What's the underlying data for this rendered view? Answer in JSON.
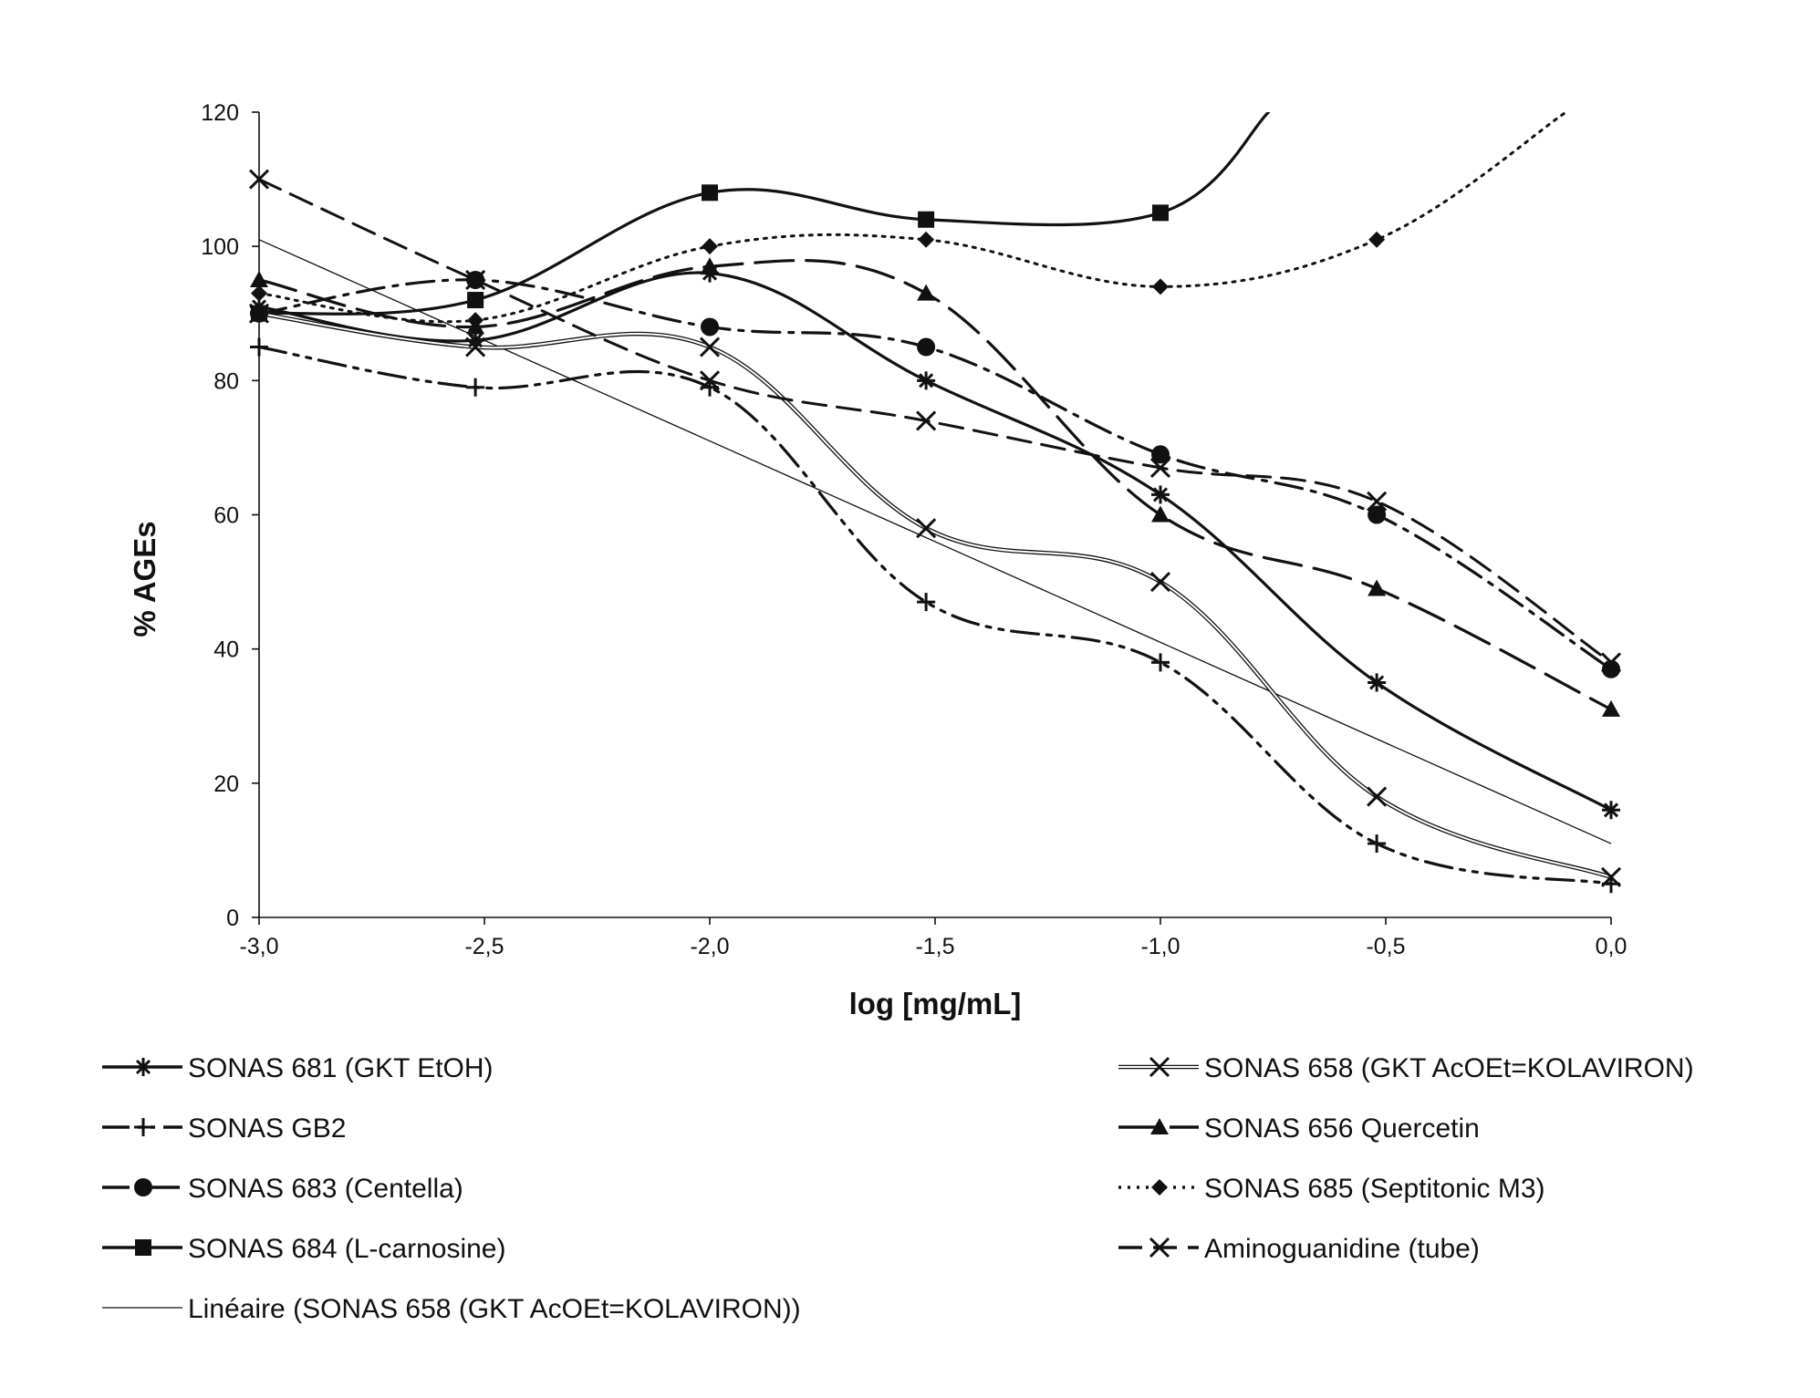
{
  "chart_data": {
    "type": "line",
    "title": "",
    "xlabel": "log [mg/mL]",
    "ylabel": "% AGEs",
    "xlim": [
      -3.0,
      0.0
    ],
    "ylim": [
      0,
      120
    ],
    "x_ticks": [
      -3.0,
      -2.5,
      -2.0,
      -1.5,
      -1.0,
      -0.5,
      0.0
    ],
    "x_tick_labels": [
      "-3,0",
      "-2,5",
      "-2,0",
      "-1,5",
      "-1,0",
      "-0,5",
      "0,0"
    ],
    "y_ticks": [
      0,
      20,
      40,
      60,
      80,
      100,
      120
    ],
    "y_tick_labels": [
      "0",
      "20",
      "40",
      "60",
      "80",
      "100",
      "120"
    ],
    "grid": false,
    "legend_position": "bottom",
    "series": [
      {
        "name": "SONAS 681 (GKT EtOH)",
        "marker": "asterisk",
        "dash": "solid",
        "stroke_width": 3.2,
        "color": "#111111",
        "x": [
          -3.0,
          -2.52,
          -2.0,
          -1.52,
          -1.0,
          -0.52,
          0.0
        ],
        "y": [
          91,
          86,
          96,
          80,
          63,
          35,
          16
        ]
      },
      {
        "name": "SONAS GB2",
        "marker": "plus",
        "dash": "dashdotdot",
        "stroke_width": 3.2,
        "color": "#111111",
        "x": [
          -3.0,
          -2.52,
          -2.0,
          -1.52,
          -1.0,
          -0.52,
          0.0
        ],
        "y": [
          85,
          79,
          79,
          47,
          38,
          11,
          5
        ]
      },
      {
        "name": "SONAS 683 (Centella)",
        "marker": "circle",
        "dash": "dashdot",
        "stroke_width": 3.2,
        "color": "#111111",
        "x": [
          -3.0,
          -2.52,
          -2.0,
          -1.52,
          -1.0,
          -0.52,
          0.0
        ],
        "y": [
          90,
          95,
          88,
          85,
          69,
          60,
          37
        ]
      },
      {
        "name": "SONAS 684 (L-carnosine)",
        "marker": "square",
        "dash": "solid",
        "stroke_width": 3.2,
        "color": "#111111",
        "x": [
          -3.0,
          -2.52,
          -2.0,
          -1.52,
          -1.0,
          -0.76
        ],
        "y": [
          90,
          92,
          108,
          104,
          105,
          120
        ]
      },
      {
        "name": "Linéaire (SONAS 658 (GKT AcOEt=KOLAVIRON))",
        "marker": "none",
        "dash": "solid",
        "stroke_width": 1.3,
        "color": "#111111",
        "x": [
          -3.0,
          0.0
        ],
        "y": [
          101,
          11
        ]
      },
      {
        "name": "SONAS 658 (GKT AcOEt=KOLAVIRON)",
        "marker": "x",
        "dash": "double",
        "stroke_width": 4.6,
        "color": "#111111",
        "x": [
          -3.0,
          -2.52,
          -2.0,
          -1.52,
          -1.0,
          -0.52,
          0.0
        ],
        "y": [
          90,
          85,
          85,
          58,
          50,
          18,
          6
        ]
      },
      {
        "name": "SONAS 656 Quercetin",
        "marker": "triangle",
        "dash": "longdash",
        "stroke_width": 3.2,
        "color": "#111111",
        "x": [
          -3.0,
          -2.52,
          -2.0,
          -1.52,
          -1.0,
          -0.52,
          0.0
        ],
        "y": [
          95,
          88,
          97,
          93,
          60,
          49,
          31
        ]
      },
      {
        "name": "SONAS 685 (Septitonic M3)",
        "marker": "diamond",
        "dash": "dotted",
        "stroke_width": 3.0,
        "color": "#111111",
        "x": [
          -3.0,
          -2.52,
          -2.0,
          -1.52,
          -1.0,
          -0.52,
          -0.1
        ],
        "y": [
          93,
          89,
          100,
          101,
          94,
          101,
          120
        ]
      },
      {
        "name": "Aminoguanidine (tube)",
        "marker": "x",
        "dash": "dashed",
        "stroke_width": 3.0,
        "color": "#111111",
        "x": [
          -3.0,
          -2.52,
          -2.0,
          -1.52,
          -1.0,
          -0.52,
          0.0
        ],
        "y": [
          110,
          95,
          80,
          74,
          67,
          62,
          38
        ]
      }
    ]
  },
  "legend": {
    "left": [
      "SONAS 681 (GKT EtOH)",
      "SONAS GB2",
      "SONAS 683 (Centella)",
      "SONAS 684 (L-carnosine)",
      "Linéaire (SONAS 658 (GKT AcOEt=KOLAVIRON))"
    ],
    "right": [
      "SONAS 658 (GKT AcOEt=KOLAVIRON)",
      "SONAS 656 Quercetin",
      "SONAS 685 (Septitonic M3)",
      "Aminoguanidine (tube)"
    ]
  }
}
